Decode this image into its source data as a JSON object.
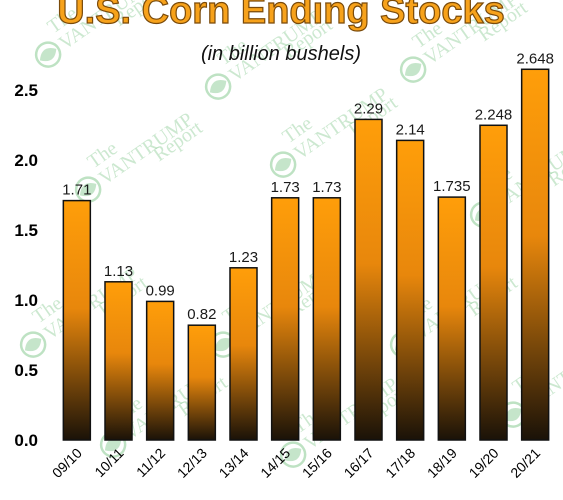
{
  "colors": {
    "title_fill": "#f7a21b",
    "title_stroke": "#7a4a0a",
    "bar_top": "#ff9e0a",
    "bar_bottom": "#1a1208",
    "watermark": "#6fbf7a"
  },
  "watermark": {
    "brand": "VANTRUMP",
    "prefix": "The",
    "suffix": "Report",
    "icon": "globe-leaf-icon"
  },
  "chart_data": {
    "type": "bar",
    "title": "U.S. Corn Ending Stocks",
    "subtitle": "(in billion bushels)",
    "xlabel": "",
    "ylabel": "",
    "ylim": [
      0,
      2.5
    ],
    "yticks": [
      "0.0",
      "0.5",
      "1.0",
      "1.5",
      "2.0",
      "2.5"
    ],
    "categories": [
      "09/10",
      "10/11",
      "11/12",
      "12/13",
      "13/14",
      "14/15",
      "15/16",
      "16/17",
      "17/18",
      "18/19",
      "19/20",
      "20/21"
    ],
    "values": [
      1.71,
      1.13,
      0.99,
      0.82,
      1.23,
      1.73,
      1.73,
      2.29,
      2.14,
      1.735,
      2.248,
      2.648
    ],
    "labels": [
      "1.71",
      "1.13",
      "0.99",
      "0.82",
      "1.23",
      "1.73",
      "1.73",
      "2.29",
      "2.14",
      "1.735",
      "2.248",
      "2.648"
    ],
    "grid": false,
    "legend": "none"
  }
}
